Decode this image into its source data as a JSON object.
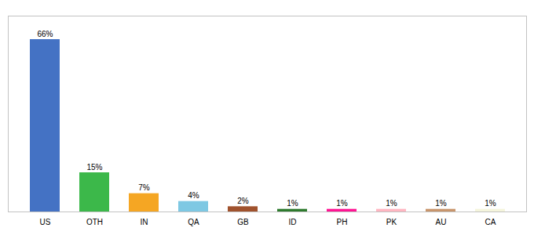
{
  "chart_data": {
    "type": "bar",
    "categories": [
      "US",
      "OTH",
      "IN",
      "QA",
      "GB",
      "ID",
      "PH",
      "PK",
      "AU",
      "CA"
    ],
    "values": [
      66,
      15,
      7,
      4,
      2,
      1,
      1,
      1,
      1,
      1
    ],
    "value_labels": [
      "66%",
      "15%",
      "7%",
      "4%",
      "2%",
      "1%",
      "1%",
      "1%",
      "1%",
      "1%"
    ],
    "colors": [
      "#4472C4",
      "#3CB84A",
      "#F5A623",
      "#7EC8E3",
      "#A0522D",
      "#2D7A2D",
      "#FF1493",
      "#FFB6C1",
      "#C8956C",
      "#F5F5DC"
    ],
    "ylim": [
      0,
      75
    ],
    "data_labels": true,
    "tick_labels": "x",
    "grid": false
  }
}
